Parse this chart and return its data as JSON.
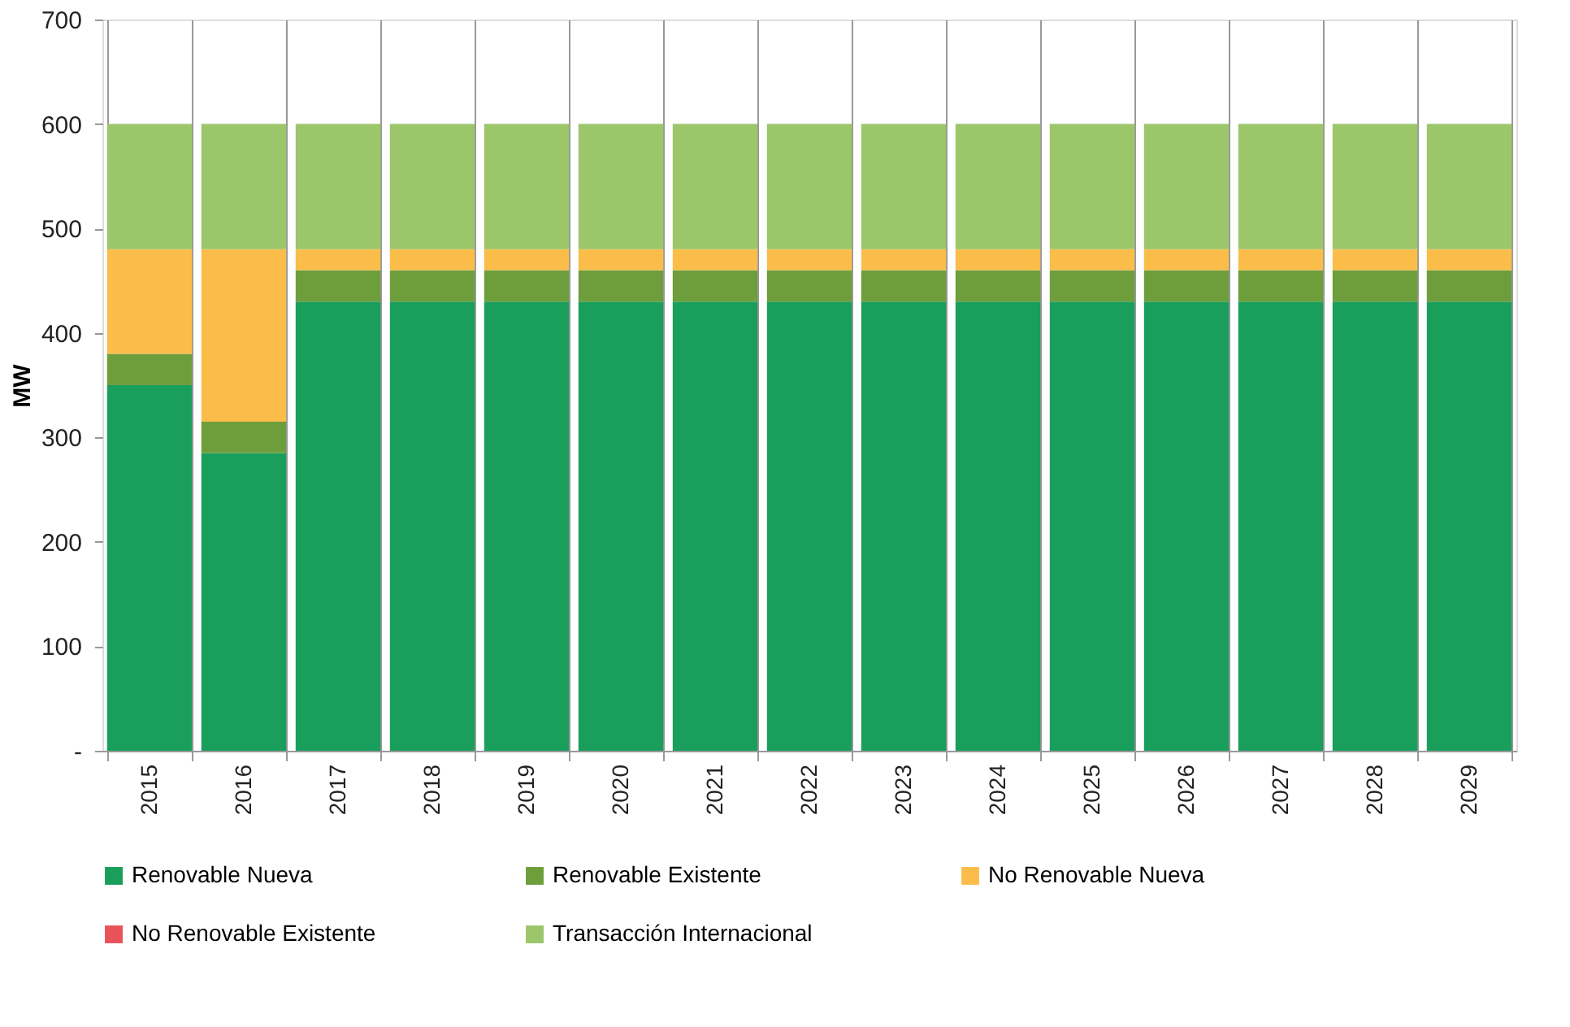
{
  "chart_data": {
    "type": "bar",
    "stacked": true,
    "ylabel": "MW",
    "categories": [
      "2015",
      "2016",
      "2017",
      "2018",
      "2019",
      "2020",
      "2021",
      "2022",
      "2023",
      "2024",
      "2025",
      "2026",
      "2027",
      "2028",
      "2029"
    ],
    "series": [
      {
        "name": "Renovable Nueva",
        "color": "#1a9e5c",
        "values": [
          350,
          285,
          430,
          430,
          430,
          430,
          430,
          430,
          430,
          430,
          430,
          430,
          430,
          430,
          430
        ]
      },
      {
        "name": "Renovable Existente",
        "color": "#6e9e3c",
        "values": [
          30,
          30,
          30,
          30,
          30,
          30,
          30,
          30,
          30,
          30,
          30,
          30,
          30,
          30,
          30
        ]
      },
      {
        "name": "No Renovable Nueva",
        "color": "#fbbd4a",
        "values": [
          100,
          165,
          20,
          20,
          20,
          20,
          20,
          20,
          20,
          20,
          20,
          20,
          20,
          20,
          20
        ]
      },
      {
        "name": "No Renovable Existente",
        "color": "#e8535a",
        "values": [
          0,
          0,
          0,
          0,
          0,
          0,
          0,
          0,
          0,
          0,
          0,
          0,
          0,
          0,
          0
        ]
      },
      {
        "name": "Transacción Internacional",
        "color": "#9cc66a",
        "values": [
          120,
          120,
          120,
          120,
          120,
          120,
          120,
          120,
          120,
          120,
          120,
          120,
          120,
          120,
          120
        ]
      }
    ],
    "ylim": [
      0,
      700
    ],
    "yticks": [
      {
        "value": 0,
        "label": "-"
      },
      100,
      200,
      300,
      400,
      500,
      600,
      700
    ],
    "grid": "x",
    "legend": "bottom"
  }
}
